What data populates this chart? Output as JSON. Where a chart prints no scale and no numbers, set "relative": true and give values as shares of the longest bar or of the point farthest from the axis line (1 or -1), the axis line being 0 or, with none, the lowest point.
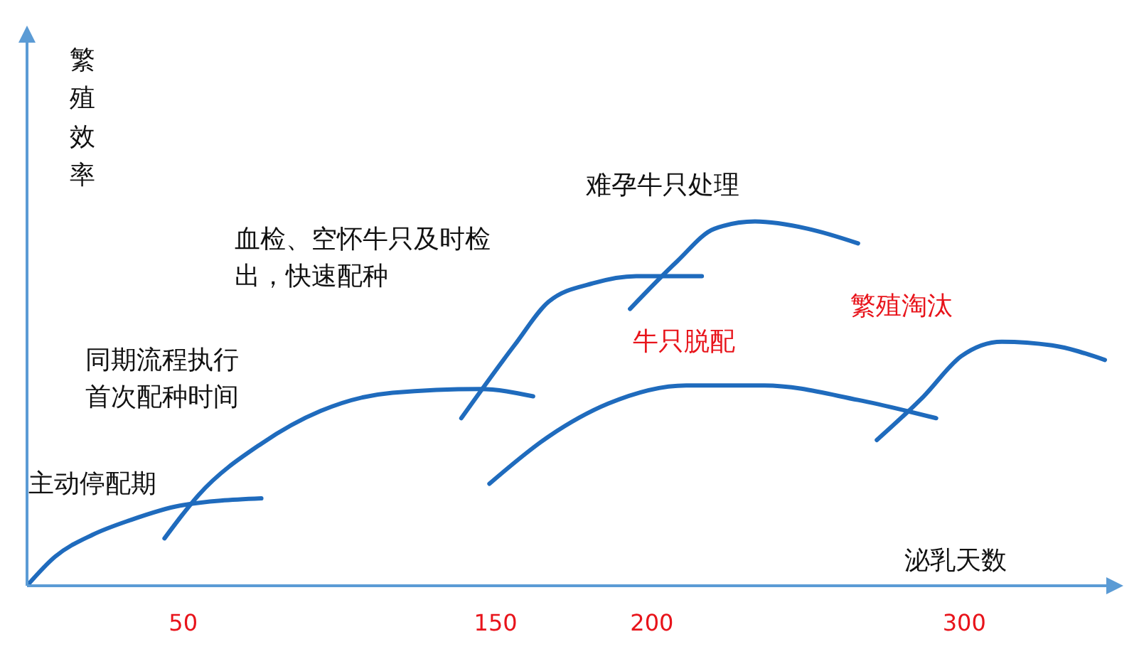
{
  "chart_data": {
    "type": "line",
    "relative": true,
    "xlabel": "泌乳天数",
    "ylabel": "繁殖效率",
    "xlim": [
      0,
      350
    ],
    "xticks": [
      50,
      150,
      200,
      300
    ],
    "marker": "none",
    "line_style": "solid",
    "series": [
      {
        "color": "#1f6bbd",
        "x": [
          0,
          9,
          21,
          33,
          49,
          75
        ],
        "values": [
          0,
          0.08,
          0.14,
          0.18,
          0.22,
          0.24
        ]
      },
      {
        "color": "#1f6bbd",
        "x": [
          44,
          55,
          75,
          94,
          117,
          145,
          162
        ],
        "values": [
          0.13,
          0.25,
          0.39,
          0.48,
          0.53,
          0.54,
          0.52
        ]
      },
      {
        "color": "#1f6bbd",
        "x": [
          139,
          156,
          167,
          181,
          195,
          216
        ],
        "values": [
          0.46,
          0.66,
          0.78,
          0.83,
          0.85,
          0.85
        ]
      },
      {
        "color": "#1f6bbd",
        "x": [
          193,
          208,
          220,
          233,
          250,
          266
        ],
        "values": [
          0.76,
          0.89,
          0.98,
          1.0,
          0.98,
          0.94
        ]
      },
      {
        "color": "#1f6bbd",
        "x": [
          148,
          167,
          186,
          211,
          236,
          266,
          291
        ],
        "values": [
          0.28,
          0.41,
          0.5,
          0.55,
          0.55,
          0.51,
          0.46
        ]
      },
      {
        "color": "#1f6bbd",
        "x": [
          272,
          287,
          299,
          312,
          328,
          345
        ],
        "values": [
          0.4,
          0.52,
          0.63,
          0.67,
          0.66,
          0.62
        ]
      }
    ],
    "annotations": [
      "主动停配期",
      "同期流程执行首次配种时间",
      "血检、空怀牛只及时检出，快速配种",
      "难孕牛只处理",
      "牛只脱配",
      "繁殖淘汰"
    ]
  }
}
